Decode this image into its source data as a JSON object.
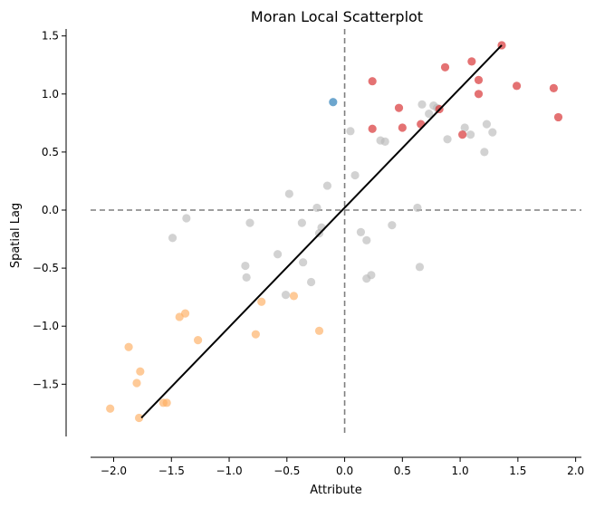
{
  "chart_data": {
    "type": "scatter",
    "title": "Moran Local Scatterplot",
    "xlabel": "Attribute",
    "ylabel": "Spatial Lag",
    "xlim": [
      -2.2,
      2.05
    ],
    "ylim": [
      -1.95,
      1.56
    ],
    "xticks": [
      -2.0,
      -1.5,
      -1.0,
      -0.5,
      0.0,
      0.5,
      1.0,
      1.5,
      2.0
    ],
    "xtick_labels": [
      "−2.0",
      "−1.5",
      "−1.0",
      "−0.5",
      "0.0",
      "0.5",
      "1.0",
      "1.5",
      "2.0"
    ],
    "yticks": [
      -1.5,
      -1.0,
      -0.5,
      0.0,
      0.5,
      1.0,
      1.5
    ],
    "ytick_labels": [
      "−1.5",
      "−1.0",
      "−0.5",
      "0.0",
      "0.5",
      "1.0",
      "1.5"
    ],
    "grid": false,
    "colors": {
      "high_high": "#d62728",
      "low_high": "#1f77b4",
      "low_low": "#fdae61",
      "not_significant": "#bababa",
      "fit_line": "#000000",
      "reference_line": "#7f7f7f"
    },
    "reference_lines": {
      "x": 0.0,
      "y": 0.0
    },
    "fit_line": {
      "x": [
        -1.76,
        1.36
      ],
      "y": [
        -1.79,
        1.42
      ]
    },
    "series": [
      {
        "group": "high_high",
        "x": [
          1.36,
          0.24,
          0.87,
          1.1,
          1.16,
          1.16,
          1.49,
          1.81,
          1.85,
          0.47,
          0.24,
          0.5,
          0.66,
          0.82,
          1.02
        ],
        "y": [
          1.42,
          1.11,
          1.23,
          1.28,
          1.12,
          1.0,
          1.07,
          1.05,
          0.8,
          0.88,
          0.7,
          0.71,
          0.74,
          0.87,
          0.65
        ]
      },
      {
        "group": "low_high",
        "x": [
          -0.1
        ],
        "y": [
          0.93
        ]
      },
      {
        "group": "low_low",
        "x": [
          -2.03,
          -1.87,
          -1.8,
          -1.77,
          -1.78,
          -1.57,
          -1.54,
          -1.43,
          -1.38,
          -1.27,
          -0.77,
          -0.72,
          -0.44,
          -0.22
        ],
        "y": [
          -1.71,
          -1.18,
          -1.49,
          -1.39,
          -1.79,
          -1.66,
          -1.66,
          -0.92,
          -0.89,
          -1.12,
          -1.07,
          -0.79,
          -0.74,
          -1.04
        ]
      },
      {
        "group": "not_significant",
        "x": [
          -1.49,
          -1.37,
          -0.86,
          -0.82,
          -0.85,
          -0.58,
          -0.48,
          -0.37,
          -0.36,
          -0.29,
          -0.24,
          -0.22,
          -0.2,
          -0.15,
          -0.51,
          0.05,
          0.09,
          0.14,
          0.19,
          0.19,
          0.23,
          0.31,
          0.35,
          0.41,
          0.63,
          0.65,
          0.67,
          0.73,
          0.77,
          0.8,
          0.89,
          1.04,
          1.09,
          1.21,
          1.23,
          1.28
        ],
        "y": [
          -0.24,
          -0.07,
          -0.48,
          -0.11,
          -0.58,
          -0.38,
          0.14,
          -0.11,
          -0.45,
          -0.62,
          0.02,
          -0.2,
          -0.15,
          0.21,
          -0.73,
          0.68,
          0.3,
          -0.19,
          -0.26,
          -0.59,
          -0.56,
          0.6,
          0.59,
          -0.13,
          0.02,
          -0.49,
          0.91,
          0.83,
          0.9,
          0.88,
          0.61,
          0.71,
          0.65,
          0.5,
          0.74,
          0.67
        ]
      }
    ]
  }
}
